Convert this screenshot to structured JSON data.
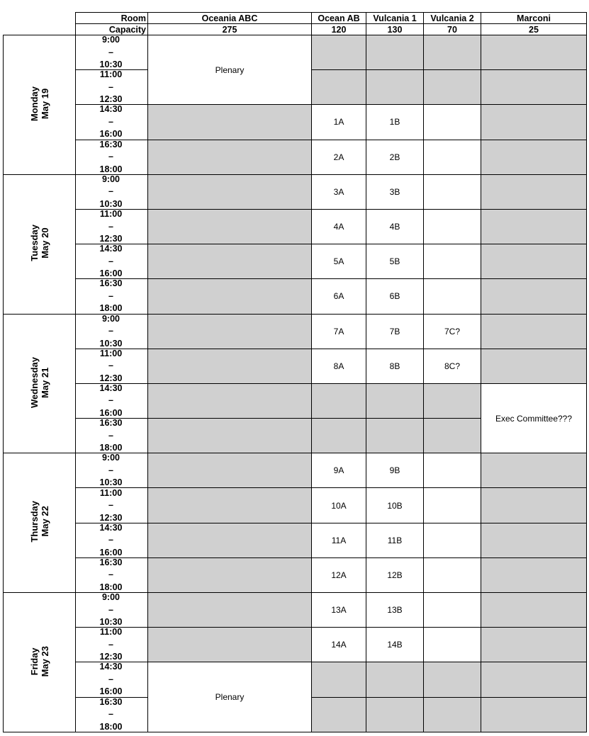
{
  "header": {
    "room_label": "Room",
    "capacity_label": "Capacity",
    "rooms": [
      {
        "name": "Oceania ABC",
        "capacity": "275"
      },
      {
        "name": "Ocean AB",
        "capacity": "120"
      },
      {
        "name": "Vulcania 1",
        "capacity": "130"
      },
      {
        "name": "Vulcania 2",
        "capacity": "70"
      },
      {
        "name": "Marconi",
        "capacity": "25"
      }
    ]
  },
  "colors": {
    "unavailable": "#d0d0d0",
    "available": "#ffffff",
    "border": "#000000"
  },
  "time_separator": "–",
  "days": [
    {
      "day": "Monday",
      "date": "May 19",
      "slots": [
        {
          "start": "9:00",
          "end": "10:30",
          "cells": [
            {
              "text": "Plenary",
              "span": 2
            },
            {
              "gray": true
            },
            {
              "gray": true
            },
            {
              "gray": true
            },
            {
              "gray": true
            }
          ]
        },
        {
          "start": "11:00",
          "end": "12:30",
          "cells": [
            null,
            {
              "gray": true
            },
            {
              "gray": true
            },
            {
              "gray": true
            },
            {
              "gray": true
            }
          ]
        },
        {
          "start": "14:30",
          "end": "16:00",
          "cells": [
            {
              "gray": true
            },
            {
              "text": "1A"
            },
            {
              "text": "1B"
            },
            {
              "text": ""
            },
            {
              "gray": true
            }
          ]
        },
        {
          "start": "16:30",
          "end": "18:00",
          "cells": [
            {
              "gray": true
            },
            {
              "text": "2A"
            },
            {
              "text": "2B"
            },
            {
              "text": ""
            },
            {
              "gray": true
            }
          ]
        }
      ]
    },
    {
      "day": "Tuesday",
      "date": "May 20",
      "slots": [
        {
          "start": "9:00",
          "end": "10:30",
          "cells": [
            {
              "gray": true
            },
            {
              "text": "3A"
            },
            {
              "text": "3B"
            },
            {
              "text": ""
            },
            {
              "gray": true
            }
          ]
        },
        {
          "start": "11:00",
          "end": "12:30",
          "cells": [
            {
              "gray": true
            },
            {
              "text": "4A"
            },
            {
              "text": "4B"
            },
            {
              "text": ""
            },
            {
              "gray": true
            }
          ]
        },
        {
          "start": "14:30",
          "end": "16:00",
          "cells": [
            {
              "gray": true
            },
            {
              "text": "5A"
            },
            {
              "text": "5B"
            },
            {
              "text": ""
            },
            {
              "gray": true
            }
          ]
        },
        {
          "start": "16:30",
          "end": "18:00",
          "cells": [
            {
              "gray": true
            },
            {
              "text": "6A"
            },
            {
              "text": "6B"
            },
            {
              "text": ""
            },
            {
              "gray": true
            }
          ]
        }
      ]
    },
    {
      "day": "Wednesday",
      "date": "May 21",
      "slots": [
        {
          "start": "9:00",
          "end": "10:30",
          "cells": [
            {
              "gray": true
            },
            {
              "text": "7A"
            },
            {
              "text": "7B"
            },
            {
              "text": "7C?"
            },
            {
              "gray": true
            }
          ]
        },
        {
          "start": "11:00",
          "end": "12:30",
          "cells": [
            {
              "gray": true
            },
            {
              "text": "8A"
            },
            {
              "text": "8B"
            },
            {
              "text": "8C?"
            },
            {
              "gray": true
            }
          ]
        },
        {
          "start": "14:30",
          "end": "16:00",
          "cells": [
            {
              "gray": true
            },
            {
              "gray": true
            },
            {
              "gray": true
            },
            {
              "gray": true
            },
            {
              "text": "Exec Committee???",
              "span": 2
            }
          ]
        },
        {
          "start": "16:30",
          "end": "18:00",
          "cells": [
            {
              "gray": true
            },
            {
              "gray": true
            },
            {
              "gray": true
            },
            {
              "gray": true
            },
            null
          ]
        }
      ]
    },
    {
      "day": "Thursday",
      "date": "May 22",
      "slots": [
        {
          "start": "9:00",
          "end": "10:30",
          "cells": [
            {
              "gray": true
            },
            {
              "text": "9A"
            },
            {
              "text": "9B"
            },
            {
              "text": ""
            },
            {
              "gray": true
            }
          ]
        },
        {
          "start": "11:00",
          "end": "12:30",
          "cells": [
            {
              "gray": true
            },
            {
              "text": "10A"
            },
            {
              "text": "10B"
            },
            {
              "text": ""
            },
            {
              "gray": true
            }
          ]
        },
        {
          "start": "14:30",
          "end": "16:00",
          "cells": [
            {
              "gray": true
            },
            {
              "text": "11A"
            },
            {
              "text": "11B"
            },
            {
              "text": ""
            },
            {
              "gray": true
            }
          ]
        },
        {
          "start": "16:30",
          "end": "18:00",
          "cells": [
            {
              "gray": true
            },
            {
              "text": "12A"
            },
            {
              "text": "12B"
            },
            {
              "text": ""
            },
            {
              "gray": true
            }
          ]
        }
      ]
    },
    {
      "day": "Friday",
      "date": "May 23",
      "slots": [
        {
          "start": "9:00",
          "end": "10:30",
          "cells": [
            {
              "gray": true
            },
            {
              "text": "13A"
            },
            {
              "text": "13B"
            },
            {
              "text": ""
            },
            {
              "gray": true
            }
          ]
        },
        {
          "start": "11:00",
          "end": "12:30",
          "cells": [
            {
              "gray": true
            },
            {
              "text": "14A"
            },
            {
              "text": "14B"
            },
            {
              "text": ""
            },
            {
              "gray": true
            }
          ]
        },
        {
          "start": "14:30",
          "end": "16:00",
          "cells": [
            {
              "text": "Plenary",
              "span": 2
            },
            {
              "gray": true
            },
            {
              "gray": true
            },
            {
              "gray": true
            },
            {
              "gray": true
            }
          ]
        },
        {
          "start": "16:30",
          "end": "18:00",
          "cells": [
            null,
            {
              "gray": true
            },
            {
              "gray": true
            },
            {
              "gray": true
            },
            {
              "gray": true
            }
          ]
        }
      ]
    }
  ]
}
